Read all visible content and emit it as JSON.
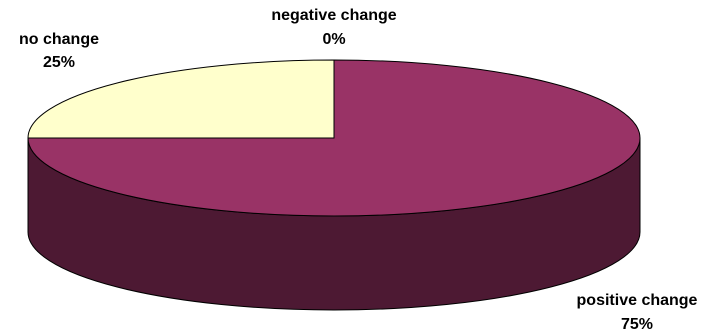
{
  "chart_data": {
    "type": "pie",
    "style": "3d",
    "title": "",
    "categories": [
      "positive change",
      "no change",
      "negative change"
    ],
    "values": [
      75,
      25,
      0
    ],
    "value_labels": [
      "75%",
      "25%",
      "0%"
    ],
    "colors": {
      "positive change": "#993366",
      "positive change side": "#4d1933",
      "no change": "#ffffcc",
      "negative change": "#ccccff",
      "outline": "#000000"
    },
    "legend": "none",
    "data_labels": "outside"
  }
}
